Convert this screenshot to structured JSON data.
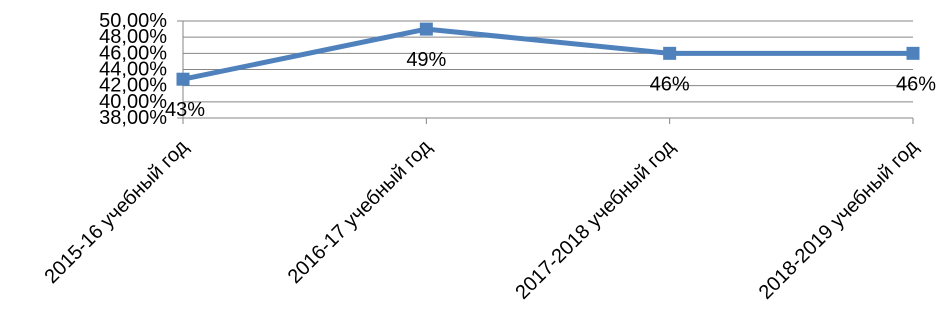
{
  "chart_data": {
    "type": "line",
    "categories": [
      "2015-16 учебный год",
      "2016-17 учебный год",
      "2017-2018 учебный год",
      "2018-2019 учебный год"
    ],
    "series": [
      {
        "values": [
          42.8,
          49.0,
          46.0,
          46.0
        ],
        "color": "#4f81bd"
      }
    ],
    "data_labels": [
      "43%",
      "49%",
      "46%",
      "46%"
    ],
    "yticks": [
      "38,00%",
      "40,00%",
      "42,00%",
      "44,00%",
      "46,00%",
      "48,00%",
      "50,00%"
    ],
    "ylim": [
      38,
      50
    ],
    "grid": true,
    "legend": "none",
    "gridline_color": "#868686",
    "axis_color": "#868686"
  }
}
